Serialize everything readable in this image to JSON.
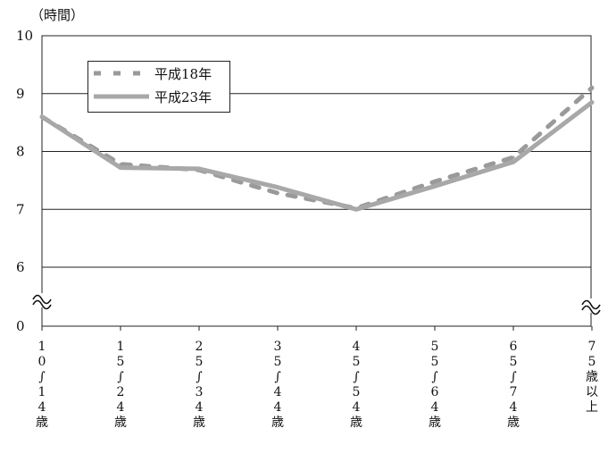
{
  "chart_data": {
    "type": "line",
    "unit_label": "（時間）",
    "categories": [
      [
        "1",
        "0",
        "∫",
        "1",
        "4",
        "歳"
      ],
      [
        "1",
        "5",
        "∫",
        "2",
        "4",
        "歳"
      ],
      [
        "2",
        "5",
        "∫",
        "3",
        "4",
        "歳"
      ],
      [
        "3",
        "5",
        "∫",
        "4",
        "4",
        "歳"
      ],
      [
        "4",
        "5",
        "∫",
        "5",
        "4",
        "歳"
      ],
      [
        "5",
        "5",
        "∫",
        "6",
        "4",
        "歳"
      ],
      [
        "6",
        "5",
        "∫",
        "7",
        "4",
        "歳"
      ],
      [
        "7",
        "5",
        "歳",
        "以",
        "上"
      ]
    ],
    "category_keys": [
      "10-14",
      "15-24",
      "25-34",
      "35-44",
      "45-54",
      "55-64",
      "65-74",
      "75+"
    ],
    "series": [
      {
        "name": "平成18年",
        "style": "dashed",
        "color": "#9a9a9a",
        "values": [
          8.6,
          7.78,
          7.68,
          7.28,
          7.02,
          7.48,
          7.9,
          9.1
        ]
      },
      {
        "name": "平成23年",
        "style": "solid",
        "color": "#a8a8a8",
        "values": [
          8.6,
          7.72,
          7.7,
          7.38,
          7.0,
          7.4,
          7.82,
          8.85
        ]
      }
    ],
    "y_ticks": [
      0,
      6,
      7,
      8,
      9,
      10
    ],
    "y_axis_break": true,
    "ylim": [
      5.6,
      10
    ],
    "grid": true,
    "legend_position": "top-left"
  }
}
